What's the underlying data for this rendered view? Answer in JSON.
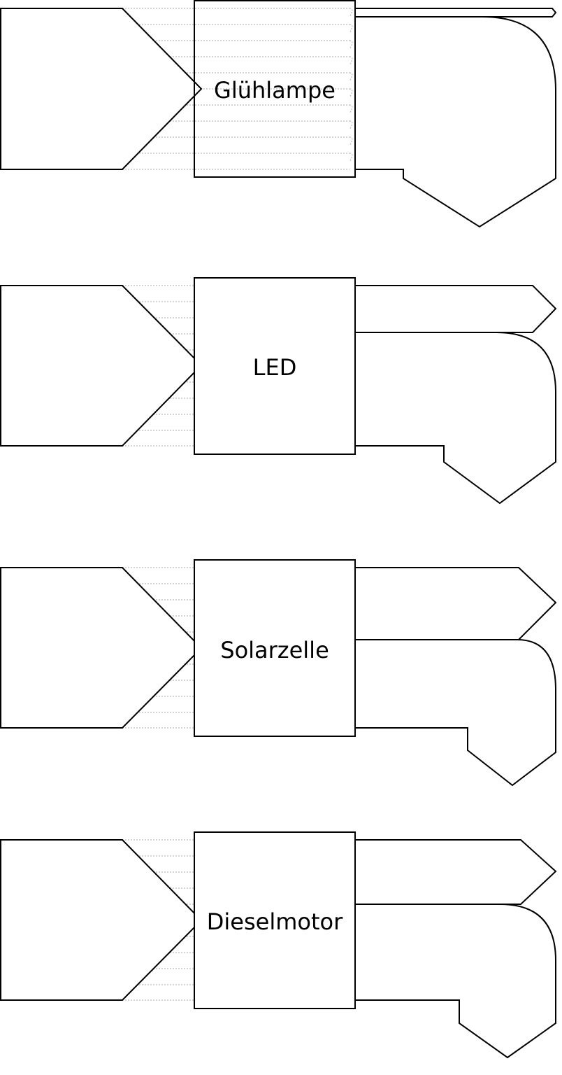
{
  "diagrams": [
    {
      "device": "Glühlamp",
      "useful_output": ""
    },
    {
      "device": "LED",
      "useful_output": ""
    },
    {
      "device": "Solarzelle",
      "useful_output": ""
    },
    {
      "device": "Dieselmotor",
      "useful_output": ""
    }
  ]
}
